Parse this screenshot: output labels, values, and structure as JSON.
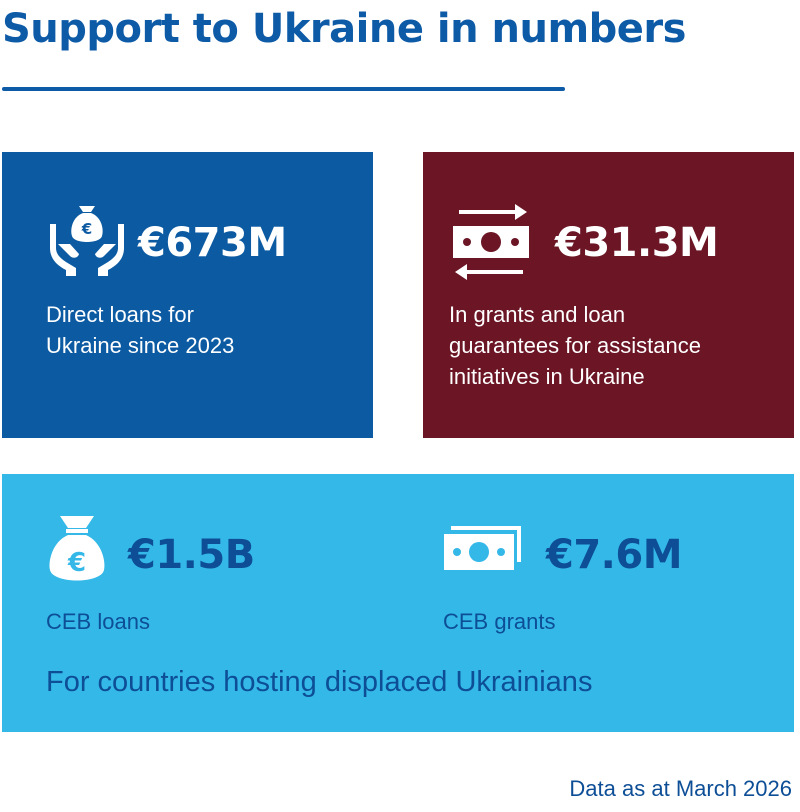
{
  "title": "Support to Ukraine in numbers",
  "cards": {
    "direct_loans": {
      "icon": "hands-money-bag-icon",
      "amount": "€673M",
      "desc_lines": [
        "Direct loans for",
        "Ukraine since 2023"
      ]
    },
    "grants_guarantees": {
      "icon": "banknote-exchange-icon",
      "amount": "€31.3M",
      "desc_lines": [
        "In grants and loan",
        "guarantees for assistance",
        "initiatives in Ukraine"
      ]
    },
    "hosting_countries": {
      "ceb_loans": {
        "icon": "euro-money-bag-icon",
        "amount": "€1.5B",
        "label": "CEB loans"
      },
      "ceb_grants": {
        "icon": "banknotes-stack-icon",
        "amount": "€7.6M",
        "label": "CEB grants"
      },
      "caption": "For countries hosting displaced Ukrainians"
    }
  },
  "footnote": "Data as at March 2026",
  "colors": {
    "title_blue": "#0d5aa7",
    "card_blue": "#0b5aa2",
    "card_maroon": "#6b1525",
    "card_light_blue": "#34b8e8",
    "navy_text": "#0d4e96"
  }
}
